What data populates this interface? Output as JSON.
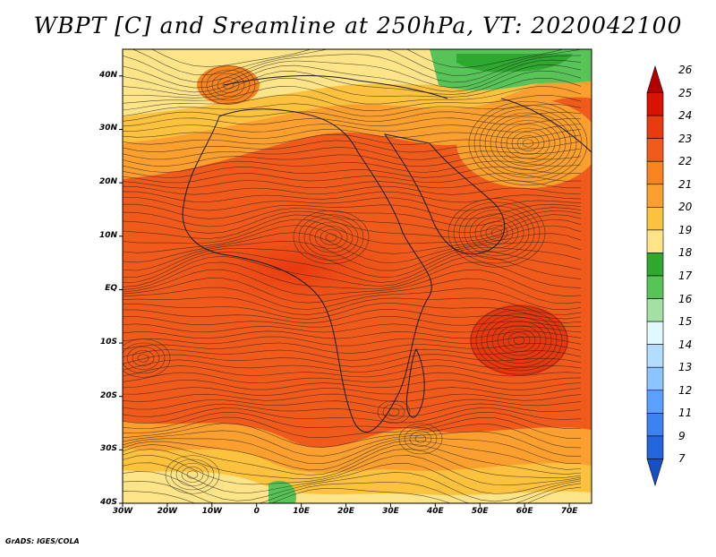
{
  "title": "WBPT [C] and Sreamline at 250hPa, VT: 2020042100",
  "footer": "GrADS: IGES/COLA",
  "map": {
    "lon_range": [
      -30,
      75
    ],
    "lat_range": [
      -40,
      45
    ],
    "lat_ticks": [
      "40N",
      "30N",
      "20N",
      "10N",
      "EQ",
      "10S",
      "20S",
      "30S",
      "40S"
    ],
    "lon_ticks": [
      "30W",
      "20W",
      "10W",
      "0",
      "10E",
      "20E",
      "30E",
      "40E",
      "50E",
      "60E",
      "70E"
    ]
  },
  "colorbar": {
    "labels": [
      "26",
      "25",
      "24",
      "23",
      "22",
      "21",
      "20",
      "19",
      "18",
      "17",
      "16",
      "15",
      "14",
      "13",
      "12",
      "11",
      "9",
      "7"
    ],
    "colors": [
      "#b40000",
      "#d81400",
      "#e83c10",
      "#f05a1a",
      "#f7841e",
      "#fba02e",
      "#fcc23e",
      "#fde488",
      "#2ea82e",
      "#58c458",
      "#a4e0a4",
      "#e0f8ff",
      "#b4dcff",
      "#8cc4ff",
      "#5aa0ff",
      "#3c82f0",
      "#2464dc",
      "#1450c8"
    ]
  }
}
